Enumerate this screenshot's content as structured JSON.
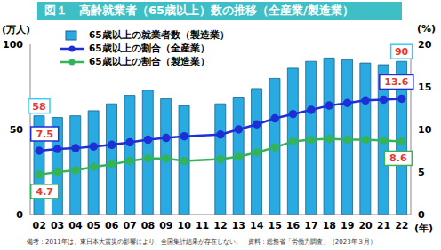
{
  "chart_data": {
    "type": "bar",
    "title": "図１　高齢就業者（65歳以上）数の推移（全産業/製造業）",
    "footnote": "備考：2011年は、東日本大震災の影響により、全国集計結果が存在しない。　資料：総務省「労働力調査」（2023年３月）",
    "x_label": "(年)",
    "y_label": "(万人)",
    "y2_label": "(%)",
    "categories": [
      "02",
      "03",
      "04",
      "05",
      "06",
      "07",
      "08",
      "09",
      "10",
      "11",
      "12",
      "13",
      "14",
      "15",
      "16",
      "17",
      "18",
      "19",
      "20",
      "21",
      "22"
    ],
    "series": [
      {
        "name": "65歳以上の就業者数（製造業）",
        "type": "bar",
        "color": "#29abe2",
        "values": [
          58,
          57,
          58,
          61,
          65,
          70,
          73,
          68,
          64,
          null,
          65,
          69,
          74,
          80,
          86,
          90,
          92,
          91,
          89,
          88,
          90
        ],
        "data_labels": true,
        "value_labels": [
          "58",
          null,
          null,
          null,
          null,
          null,
          null,
          null,
          null,
          null,
          null,
          null,
          null,
          null,
          null,
          null,
          null,
          null,
          null,
          null,
          "90"
        ]
      },
      {
        "name": "65歳以上の割合（全産業）",
        "type": "line",
        "axis": "y2",
        "color": "#1f2fd6",
        "marker": "circle",
        "values": [
          7.5,
          7.7,
          7.8,
          8.0,
          8.2,
          8.5,
          8.8,
          9.0,
          9.2,
          null,
          9.4,
          10.0,
          10.6,
          11.3,
          11.8,
          12.3,
          12.8,
          13.1,
          13.4,
          13.5,
          13.6
        ],
        "data_labels": true,
        "value_labels": [
          "7.5",
          null,
          null,
          null,
          null,
          null,
          null,
          null,
          null,
          null,
          null,
          null,
          null,
          null,
          null,
          null,
          null,
          null,
          null,
          null,
          "13.6"
        ]
      },
      {
        "name": "65歳以上の割合（製造業）",
        "type": "line",
        "axis": "y2",
        "color": "#33b35a",
        "marker": "circle",
        "values": [
          4.7,
          5.0,
          5.2,
          5.6,
          5.9,
          6.3,
          6.6,
          6.6,
          6.3,
          null,
          6.5,
          6.8,
          7.3,
          7.9,
          8.6,
          8.8,
          8.9,
          8.8,
          8.8,
          8.7,
          8.6
        ],
        "data_labels": true,
        "value_labels": [
          "4.7",
          null,
          null,
          null,
          null,
          null,
          null,
          null,
          null,
          null,
          null,
          null,
          null,
          null,
          null,
          null,
          null,
          null,
          null,
          null,
          "8.6"
        ]
      }
    ],
    "ylim": [
      0,
      100
    ],
    "yticks": [
      0,
      50,
      100
    ],
    "y2lim": [
      0,
      20
    ],
    "y2ticks": [
      0,
      5,
      10,
      15,
      20
    ],
    "grid": false,
    "legend": "upper left"
  }
}
